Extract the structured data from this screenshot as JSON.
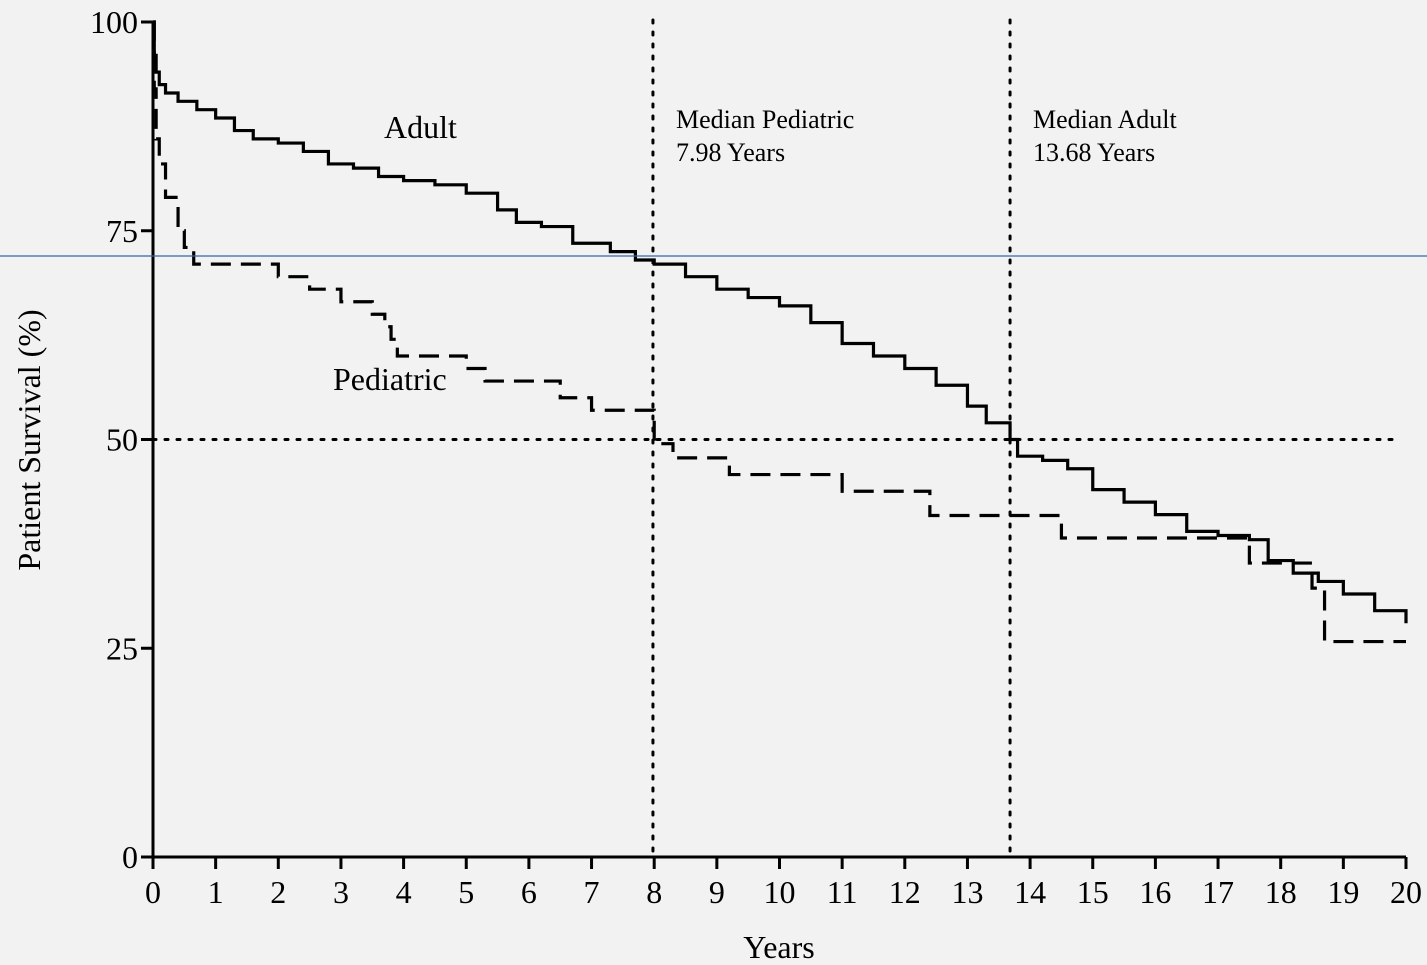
{
  "chart_data": {
    "type": "line",
    "xlabel": "Years",
    "ylabel": "Patient Survival (%)",
    "xlim": [
      0,
      20
    ],
    "ylim": [
      0,
      100
    ],
    "x_ticks": [
      0,
      1,
      2,
      3,
      4,
      5,
      6,
      7,
      8,
      9,
      10,
      11,
      12,
      13,
      14,
      15,
      16,
      17,
      18,
      19,
      20
    ],
    "y_ticks": [
      0,
      25,
      50,
      75,
      100
    ],
    "step_curve": true,
    "series": [
      {
        "name": "Adult",
        "style": "solid",
        "color": "#000000",
        "x": [
          0,
          0.02,
          0.05,
          0.1,
          0.2,
          0.4,
          0.7,
          1.0,
          1.3,
          1.6,
          2.0,
          2.4,
          2.8,
          3.2,
          3.6,
          4.0,
          4.5,
          5.0,
          5.5,
          5.8,
          6.2,
          6.7,
          7.3,
          7.7,
          8.0,
          8.5,
          9.0,
          9.5,
          10.0,
          10.5,
          11.0,
          11.5,
          12.0,
          12.5,
          13.0,
          13.3,
          13.68,
          13.8,
          14.2,
          14.6,
          15.0,
          15.5,
          16.0,
          16.5,
          17.0,
          17.5,
          17.8,
          18.2,
          18.6,
          19.0,
          19.5,
          20.0
        ],
        "y": [
          100,
          96,
          94,
          92.5,
          91.5,
          90.5,
          89.5,
          88.5,
          87,
          86,
          85.5,
          84.5,
          83,
          82.5,
          81.5,
          81,
          80.5,
          79.5,
          77.5,
          76,
          75.5,
          73.5,
          72.5,
          71.5,
          71,
          69.5,
          68,
          67,
          66,
          64,
          61.5,
          60,
          58.5,
          56.5,
          54,
          52,
          50,
          48,
          47.5,
          46.5,
          44,
          42.5,
          41,
          39,
          38.5,
          38,
          35.5,
          34,
          33,
          31.5,
          29.5,
          28
        ]
      },
      {
        "name": "Pediatric",
        "style": "dashed",
        "color": "#000000",
        "x": [
          0,
          0.02,
          0.05,
          0.1,
          0.2,
          0.4,
          0.5,
          0.65,
          1.0,
          2.0,
          2.5,
          3.0,
          3.5,
          3.7,
          3.8,
          3.9,
          4.0,
          5.0,
          5.3,
          5.5,
          6.5,
          7.0,
          7.5,
          8.0,
          8.3,
          9.2,
          10.0,
          11.0,
          12.4,
          13.0,
          14.0,
          14.5,
          16.0,
          17.0,
          17.5,
          18.0,
          18.5,
          18.7,
          20.0
        ],
        "y": [
          100,
          92,
          86,
          83,
          79,
          75,
          73,
          71,
          71,
          69.5,
          68,
          66.5,
          65,
          63.5,
          62,
          60,
          60,
          58.5,
          57,
          57,
          55,
          53.5,
          53.5,
          49.5,
          47.8,
          45.8,
          45.8,
          43.8,
          40.9,
          40.9,
          40.9,
          38.2,
          38.2,
          38.2,
          35.2,
          35.2,
          32.2,
          25.8,
          25.8
        ]
      }
    ],
    "reference_lines": {
      "horizontal_y": 50,
      "vertical_x": [
        7.98,
        13.68
      ],
      "style": "dotted"
    },
    "annotations": [
      {
        "line1": "Median Pediatric",
        "line2": "7.98 Years",
        "x": 7.98
      },
      {
        "line1": "Median Adult",
        "line2": "13.68 Years",
        "x": 13.68
      }
    ],
    "grid": false,
    "overlay_line_color": "#3366aa"
  }
}
